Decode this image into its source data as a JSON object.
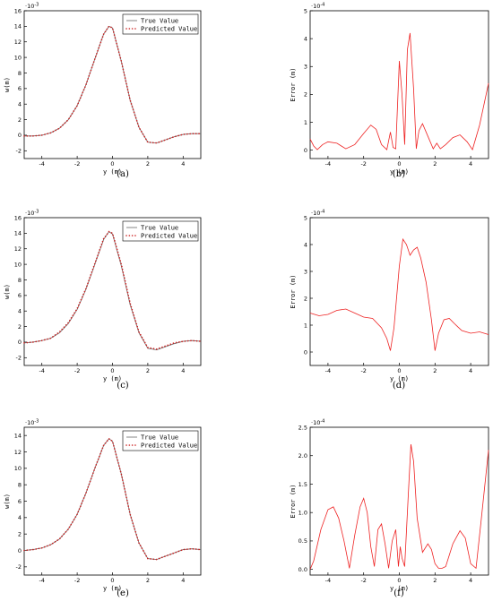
{
  "chart_data": [
    {
      "id": "a",
      "type": "line",
      "caption": "(a)",
      "xlabel": "y (m)",
      "ylabel": "w(m)",
      "sci": "-3",
      "xlim": [
        -5,
        5
      ],
      "ylim": [
        -3,
        16
      ],
      "xticks": [
        -4,
        -2,
        0,
        2,
        4
      ],
      "yticks": [
        -2,
        0,
        2,
        4,
        6,
        8,
        10,
        12,
        14,
        16
      ],
      "legend": [
        "True Value",
        "Predicted Value"
      ],
      "series": [
        {
          "name": "True Value",
          "style": "solid",
          "color": "#666666",
          "x": [
            -5,
            -4.5,
            -4,
            -3.5,
            -3,
            -2.5,
            -2,
            -1.5,
            -1,
            -0.5,
            -0.2,
            0,
            0.5,
            1,
            1.5,
            2,
            2.5,
            3,
            3.5,
            4,
            4.5,
            5
          ],
          "y": [
            -0.1,
            -0.1,
            0,
            0.3,
            0.9,
            2.0,
            3.8,
            6.5,
            9.8,
            13.0,
            14.0,
            13.8,
            9.5,
            4.5,
            1.0,
            -0.9,
            -1.0,
            -0.6,
            -0.2,
            0.1,
            0.2,
            0.2
          ]
        },
        {
          "name": "Predicted Value",
          "style": "dotted",
          "color": "#cc2222",
          "x": [
            -5,
            -4.5,
            -4,
            -3.5,
            -3,
            -2.5,
            -2,
            -1.5,
            -1,
            -0.5,
            -0.2,
            0,
            0.5,
            1,
            1.5,
            2,
            2.5,
            3,
            3.5,
            4,
            4.5,
            5
          ],
          "y": [
            -0.1,
            -0.1,
            0,
            0.3,
            0.9,
            2.0,
            3.8,
            6.5,
            9.8,
            13.0,
            14.0,
            13.8,
            9.5,
            4.5,
            1.0,
            -0.9,
            -1.0,
            -0.6,
            -0.2,
            0.1,
            0.2,
            0.2
          ]
        }
      ]
    },
    {
      "id": "b",
      "type": "line",
      "caption": "(b)",
      "xlabel": "y (m)",
      "ylabel": "Error (m)",
      "sci": "-4",
      "xlim": [
        -5,
        5
      ],
      "ylim": [
        -0.3,
        5
      ],
      "xticks": [
        -4,
        -2,
        0,
        2,
        4
      ],
      "yticks": [
        0,
        1,
        2,
        3,
        4,
        5
      ],
      "series": [
        {
          "name": "",
          "style": "solid",
          "color": "#ee2222",
          "x": [
            -5,
            -4.8,
            -4.6,
            -4.3,
            -4,
            -3.5,
            -3,
            -2.5,
            -2,
            -1.6,
            -1.3,
            -1,
            -0.7,
            -0.5,
            -0.35,
            -0.2,
            0,
            0.15,
            0.3,
            0.45,
            0.6,
            0.8,
            0.95,
            1.1,
            1.3,
            1.6,
            1.9,
            2.1,
            2.3,
            2.6,
            3,
            3.4,
            3.8,
            4.1,
            4.5,
            5
          ],
          "y": [
            0.4,
            0.15,
            0.02,
            0.2,
            0.3,
            0.25,
            0.05,
            0.2,
            0.6,
            0.9,
            0.75,
            0.2,
            0.02,
            0.65,
            0.1,
            0.05,
            3.2,
            2.0,
            0.2,
            3.6,
            4.2,
            2.2,
            0.05,
            0.7,
            0.95,
            0.5,
            0.05,
            0.25,
            0.05,
            0.2,
            0.45,
            0.55,
            0.3,
            0.02,
            0.9,
            2.4
          ]
        }
      ]
    },
    {
      "id": "c",
      "type": "line",
      "caption": "(c)",
      "xlabel": "y (m)",
      "ylabel": "w(m)",
      "sci": "-3",
      "xlim": [
        -5,
        5
      ],
      "ylim": [
        -3,
        16
      ],
      "xticks": [
        -4,
        -2,
        0,
        2,
        4
      ],
      "yticks": [
        -2,
        0,
        2,
        4,
        6,
        8,
        10,
        12,
        14,
        16
      ],
      "legend": [
        "True Value",
        "Predicted Value"
      ],
      "series": [
        {
          "name": "True Value",
          "style": "solid",
          "color": "#666666",
          "x": [
            -5,
            -4.5,
            -4,
            -3.5,
            -3,
            -2.5,
            -2,
            -1.5,
            -1,
            -0.5,
            -0.2,
            0,
            0.5,
            1,
            1.5,
            2,
            2.5,
            3,
            3.5,
            4,
            4.5,
            5
          ],
          "y": [
            -0.1,
            0,
            0.2,
            0.5,
            1.2,
            2.4,
            4.2,
            6.8,
            10.0,
            13.2,
            14.2,
            13.9,
            9.8,
            4.8,
            1.2,
            -0.8,
            -1.0,
            -0.6,
            -0.2,
            0.1,
            0.2,
            0.1
          ]
        },
        {
          "name": "Predicted Value",
          "style": "dotted",
          "color": "#cc2222",
          "x": [
            -5,
            -4.5,
            -4,
            -3.5,
            -3,
            -2.5,
            -2,
            -1.5,
            -1,
            -0.5,
            -0.2,
            0,
            0.5,
            1,
            1.5,
            2,
            2.5,
            3,
            3.5,
            4,
            4.5,
            5
          ],
          "y": [
            -0.1,
            0,
            0.2,
            0.5,
            1.3,
            2.5,
            4.3,
            6.9,
            10.1,
            13.3,
            14.2,
            14.0,
            10.0,
            5.0,
            1.3,
            -0.7,
            -0.9,
            -0.5,
            -0.1,
            0.1,
            0.2,
            0.1
          ]
        }
      ]
    },
    {
      "id": "d",
      "type": "line",
      "caption": "(d)",
      "xlabel": "y (m)",
      "ylabel": "Error (m)",
      "sci": "-4",
      "xlim": [
        -5,
        5
      ],
      "ylim": [
        -0.5,
        5
      ],
      "xticks": [
        -4,
        -2,
        0,
        2,
        4
      ],
      "yticks": [
        0,
        1,
        2,
        3,
        4,
        5
      ],
      "series": [
        {
          "name": "",
          "style": "solid",
          "color": "#ee2222",
          "x": [
            -5,
            -4.5,
            -4,
            -3.5,
            -3,
            -2.5,
            -2,
            -1.5,
            -1,
            -0.7,
            -0.5,
            -0.3,
            0,
            0.2,
            0.4,
            0.6,
            0.8,
            1,
            1.2,
            1.5,
            1.8,
            2,
            2.2,
            2.5,
            2.8,
            3.1,
            3.5,
            4,
            4.5,
            5
          ],
          "y": [
            1.45,
            1.35,
            1.4,
            1.55,
            1.6,
            1.45,
            1.3,
            1.25,
            0.9,
            0.5,
            0.05,
            0.9,
            3.2,
            4.2,
            4.0,
            3.6,
            3.8,
            3.9,
            3.5,
            2.6,
            1.2,
            0.05,
            0.7,
            1.2,
            1.25,
            1.05,
            0.8,
            0.7,
            0.75,
            0.65
          ]
        }
      ]
    },
    {
      "id": "e",
      "type": "line",
      "caption": "(e)",
      "xlabel": "y (m)",
      "ylabel": "w(m)",
      "sci": "-3",
      "xlim": [
        -5,
        5
      ],
      "ylim": [
        -3,
        15
      ],
      "xticks": [
        -4,
        -2,
        0,
        2,
        4
      ],
      "yticks": [
        -2,
        0,
        2,
        4,
        6,
        8,
        10,
        12,
        14
      ],
      "legend": [
        "True Value",
        "Predicted Value"
      ],
      "series": [
        {
          "name": "True Value",
          "style": "solid",
          "color": "#666666",
          "x": [
            -5,
            -4.5,
            -4,
            -3.5,
            -3,
            -2.5,
            -2,
            -1.5,
            -1,
            -0.5,
            -0.2,
            0,
            0.5,
            1,
            1.5,
            2,
            2.5,
            3,
            3.5,
            4,
            4.5,
            5
          ],
          "y": [
            0,
            0.1,
            0.3,
            0.7,
            1.4,
            2.6,
            4.4,
            7.0,
            10.0,
            12.8,
            13.6,
            13.3,
            9.3,
            4.4,
            0.9,
            -1.0,
            -1.1,
            -0.7,
            -0.3,
            0.1,
            0.2,
            0.1
          ]
        },
        {
          "name": "Predicted Value",
          "style": "dotted",
          "color": "#cc2222",
          "x": [
            -5,
            -4.5,
            -4,
            -3.5,
            -3,
            -2.5,
            -2,
            -1.5,
            -1,
            -0.5,
            -0.2,
            0,
            0.5,
            1,
            1.5,
            2,
            2.5,
            3,
            3.5,
            4,
            4.5,
            5
          ],
          "y": [
            0,
            0.1,
            0.3,
            0.7,
            1.4,
            2.6,
            4.4,
            7.0,
            10.0,
            12.8,
            13.6,
            13.3,
            9.3,
            4.4,
            0.9,
            -1.0,
            -1.1,
            -0.7,
            -0.3,
            0.1,
            0.2,
            0.1
          ]
        }
      ]
    },
    {
      "id": "f",
      "type": "line",
      "caption": "(f)",
      "xlabel": "y (m)",
      "ylabel": "Error (m)",
      "sci": "-4",
      "xlim": [
        -5,
        5
      ],
      "ylim": [
        -0.1,
        2.5
      ],
      "xticks": [
        -4,
        -2,
        0,
        2,
        4
      ],
      "yticks": [
        0.0,
        0.5,
        1.0,
        1.5,
        2.0,
        2.5
      ],
      "series": [
        {
          "name": "",
          "style": "solid",
          "color": "#ee2222",
          "x": [
            -5,
            -4.8,
            -4.4,
            -4,
            -3.7,
            -3.4,
            -3.1,
            -2.8,
            -2.5,
            -2.2,
            -2,
            -1.8,
            -1.6,
            -1.4,
            -1.2,
            -1,
            -0.8,
            -0.6,
            -0.4,
            -0.2,
            -0.05,
            0.05,
            0.15,
            0.3,
            0.5,
            0.65,
            0.8,
            1,
            1.3,
            1.6,
            1.8,
            2,
            2.2,
            2.4,
            2.6,
            3,
            3.4,
            3.7,
            4,
            4.3,
            4.6,
            5
          ],
          "y": [
            0,
            0.15,
            0.7,
            1.05,
            1.1,
            0.9,
            0.5,
            0.02,
            0.6,
            1.1,
            1.25,
            1.0,
            0.4,
            0.05,
            0.7,
            0.8,
            0.45,
            0.02,
            0.5,
            0.7,
            0.05,
            0.4,
            0.2,
            0.05,
            1.3,
            2.2,
            1.9,
            0.9,
            0.3,
            0.45,
            0.35,
            0.1,
            0.02,
            0.02,
            0.05,
            0.45,
            0.68,
            0.55,
            0.1,
            0.02,
            0.9,
            2.1
          ]
        }
      ]
    }
  ]
}
